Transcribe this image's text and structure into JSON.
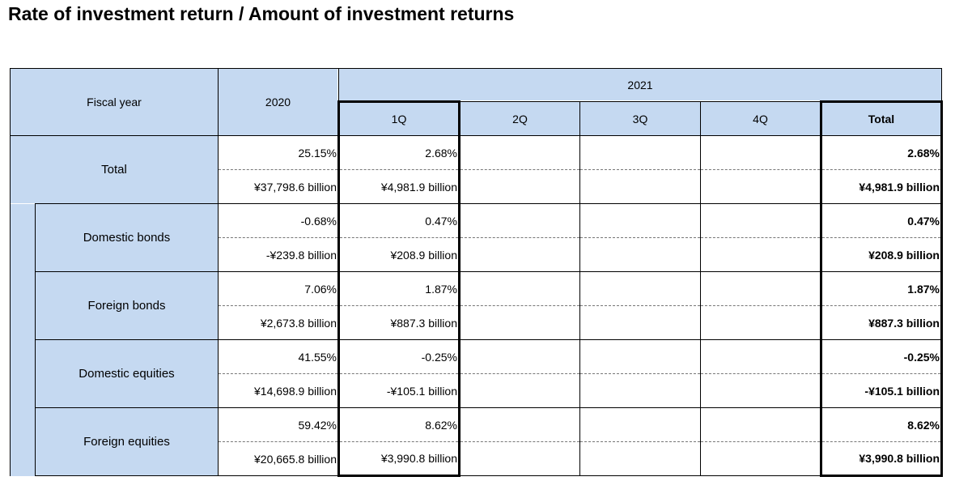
{
  "title": "Rate of investment return / Amount of investment returns",
  "headers": {
    "fiscal_year": "Fiscal year",
    "y2020": "2020",
    "y2021": "2021",
    "q1": "1Q",
    "q2": "2Q",
    "q3": "3Q",
    "q4": "4Q",
    "total": "Total"
  },
  "rows": [
    {
      "label": "Total",
      "rate": {
        "y2020": "25.15%",
        "q1": "2.68%",
        "q2": "",
        "q3": "",
        "q4": "",
        "total": "2.68%"
      },
      "amount": {
        "y2020": "¥37,798.6 billion",
        "q1": "¥4,981.9 billion",
        "q2": "",
        "q3": "",
        "q4": "",
        "total": "¥4,981.9 billion"
      }
    },
    {
      "label": "Domestic bonds",
      "rate": {
        "y2020": "-0.68%",
        "q1": "0.47%",
        "q2": "",
        "q3": "",
        "q4": "",
        "total": "0.47%"
      },
      "amount": {
        "y2020": "-¥239.8 billion",
        "q1": "¥208.9 billion",
        "q2": "",
        "q3": "",
        "q4": "",
        "total": "¥208.9 billion"
      }
    },
    {
      "label": "Foreign bonds",
      "rate": {
        "y2020": "7.06%",
        "q1": "1.87%",
        "q2": "",
        "q3": "",
        "q4": "",
        "total": "1.87%"
      },
      "amount": {
        "y2020": "¥2,673.8 billion",
        "q1": "¥887.3 billion",
        "q2": "",
        "q3": "",
        "q4": "",
        "total": "¥887.3 billion"
      }
    },
    {
      "label": "Domestic equities",
      "rate": {
        "y2020": "41.55%",
        "q1": "-0.25%",
        "q2": "",
        "q3": "",
        "q4": "",
        "total": "-0.25%"
      },
      "amount": {
        "y2020": "¥14,698.9 billion",
        "q1": "-¥105.1 billion",
        "q2": "",
        "q3": "",
        "q4": "",
        "total": "-¥105.1 billion"
      }
    },
    {
      "label": "Foreign equities",
      "rate": {
        "y2020": "59.42%",
        "q1": "8.62%",
        "q2": "",
        "q3": "",
        "q4": "",
        "total": "8.62%"
      },
      "amount": {
        "y2020": "¥20,665.8 billion",
        "q1": "¥3,990.8 billion",
        "q2": "",
        "q3": "",
        "q4": "",
        "total": "¥3,990.8 billion"
      }
    }
  ]
}
